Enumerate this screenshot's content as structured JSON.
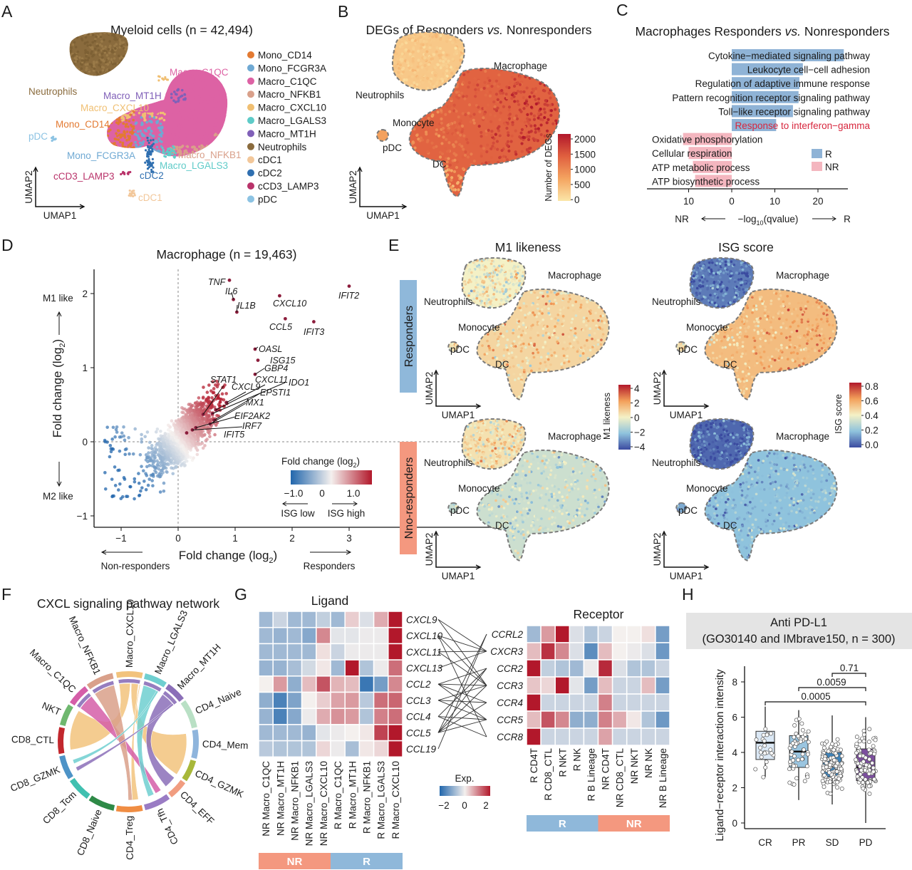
{
  "panel_letters": {
    "A": "A",
    "B": "B",
    "C": "C",
    "D": "D",
    "E": "E",
    "F": "F",
    "G": "G",
    "H": "H"
  },
  "umap_axes": {
    "x": "UMAP1",
    "y": "UMAP2"
  },
  "umap_labels": {
    "macrophage": "Macrophage",
    "neutrophils": "Neutrophils",
    "monocyte": "Monocyte",
    "pdc": "pDC",
    "dc": "DC"
  },
  "panelA": {
    "title": "Myeloid cells (n = 42,494)",
    "legend": [
      {
        "label": "Mono_CD14",
        "color": "#e37a32"
      },
      {
        "label": "Mono_FCGR3A",
        "color": "#6fa9d3"
      },
      {
        "label": "Macro_C1QC",
        "color": "#dd62a4"
      },
      {
        "label": "Macro_NFKB1",
        "color": "#d9a08a"
      },
      {
        "label": "Macro_CXCL10",
        "color": "#f0bf72"
      },
      {
        "label": "Macro_LGALS3",
        "color": "#5ecbc8"
      },
      {
        "label": "Macro_MT1H",
        "color": "#8060b8"
      },
      {
        "label": "Neutrophils",
        "color": "#8a6b3d"
      },
      {
        "label": "cDC1",
        "color": "#f2c79a"
      },
      {
        "label": "cDC2",
        "color": "#2f6fb0"
      },
      {
        "label": "cCD3_LAMP3",
        "color": "#b9336a"
      },
      {
        "label": "pDC",
        "color": "#8cc3e3"
      }
    ],
    "cluster_labels": [
      "Macro_C1QC",
      "Neutrophils",
      "Macro_MT1H",
      "Macro_CXCL10",
      "Mono_CD14",
      "pDC",
      "Mono_FCGR3A",
      "Macro_NFKB1",
      "Macro_LGALS3",
      "cCD3_LAMP3",
      "cDC2",
      "cDC1"
    ]
  },
  "panelB": {
    "title_pre": "DEGs of Responders ",
    "title_vs": "vs.",
    "title_post": " Nonresponders",
    "colorbar": {
      "label": "Number of DEGs",
      "ticks": [
        "2000",
        "1500",
        "1000",
        "500",
        "0"
      ],
      "range": [
        0,
        2000
      ],
      "colors": [
        "#fbe6a8",
        "#f4a460",
        "#e0603f",
        "#b2182b"
      ]
    }
  },
  "chart_data": [
    {
      "panel": "C",
      "type": "bar",
      "orientation": "horizontal",
      "title_pre": "Macrophages Responders ",
      "title_vs": "vs.",
      "title_post": " Nonresponders",
      "categories": [
        "Cytokine−mediated signaling pathway",
        "Leukocyte cell−cell adhesion",
        "Regulation of adaptive immune response",
        "Pattern recognition receptor signaling pathway",
        "Toll−like receptor signaling pathway",
        "Response to interferon−gamma",
        "Oxidative phosphorylation",
        "Cellular respiration",
        "ATP metabolic process",
        "ATP biosynthetic process"
      ],
      "groups": [
        "R",
        "R",
        "R",
        "R",
        "R",
        "R",
        "NR",
        "NR",
        "NR",
        "NR"
      ],
      "values": [
        26,
        16.5,
        15.7,
        15.5,
        14.2,
        10.3,
        11.3,
        10,
        9,
        8.5
      ],
      "highlight_index": 5,
      "highlight_color": "#d7263d",
      "xlabel_pre": "−log",
      "xlabel_sub": "10",
      "xlabel_post": "(qvalue)",
      "xlabel_left": "NR",
      "xlabel_right": "R",
      "xticks": [
        "10",
        "0",
        "10",
        "20"
      ],
      "xlim": [
        -13,
        28
      ],
      "legend": [
        {
          "label": "R",
          "color": "#8fb3d6"
        },
        {
          "label": "NR",
          "color": "#f4b6bf"
        }
      ]
    },
    {
      "panel": "D",
      "type": "scatter",
      "title": "Macrophage (n = 19,463)",
      "xlabel_pre": "Fold change (log",
      "xlabel_sub": "2",
      "xlabel_post": ")",
      "ylabel_pre": "Fold change (log",
      "ylabel_sub": "2",
      "ylabel_post": ")",
      "xlim": [
        -1.5,
        3.5
      ],
      "ylim": [
        -1.1,
        2.3
      ],
      "xticks": [
        "−1",
        "0",
        "1",
        "2",
        "3"
      ],
      "yticks": [
        "2",
        "1",
        "0",
        "−1"
      ],
      "y_top_note": "M1 like",
      "y_bottom_note": "M2 like",
      "x_left_note": "Non-responders",
      "x_right_note": "Responders",
      "labeled_points": [
        {
          "gene": "TNF",
          "x": 0.9,
          "y": 2.18
        },
        {
          "gene": "IL6",
          "x": 0.97,
          "y": 1.92
        },
        {
          "gene": "IL1B",
          "x": 1.03,
          "y": 1.75
        },
        {
          "gene": "CXCL10",
          "x": 1.78,
          "y": 1.97
        },
        {
          "gene": "CCL5",
          "x": 1.88,
          "y": 1.66
        },
        {
          "gene": "IFIT3",
          "x": 2.38,
          "y": 1.62
        },
        {
          "gene": "IFIT2",
          "x": 3.0,
          "y": 2.1
        },
        {
          "gene": "OASL",
          "x": 1.35,
          "y": 1.25
        },
        {
          "gene": "ISG15",
          "x": 1.4,
          "y": 1.1
        },
        {
          "gene": "GBP4",
          "x": 1.35,
          "y": 0.91
        },
        {
          "gene": "STAT1",
          "x": 0.44,
          "y": 0.37
        },
        {
          "gene": "CXCL9",
          "x": 0.85,
          "y": 0.53
        },
        {
          "gene": "CXCL11",
          "x": 0.66,
          "y": 0.43
        },
        {
          "gene": "IDO1",
          "x": 0.6,
          "y": 0.38
        },
        {
          "gene": "EPSTI1",
          "x": 0.63,
          "y": 0.29
        },
        {
          "gene": "MX1",
          "x": 0.56,
          "y": 0.24
        },
        {
          "gene": "EIF2AK2",
          "x": 0.31,
          "y": 0.19
        },
        {
          "gene": "IRF7",
          "x": 0.25,
          "y": 0.16
        },
        {
          "gene": "IFIT5",
          "x": 0.15,
          "y": 0.12
        }
      ],
      "legend": {
        "title_pre": "Fold change (log",
        "title_sub": "2",
        "title_post": ")",
        "ticks": [
          "−1.0",
          "0",
          "1.0"
        ],
        "low": "ISG low",
        "high": "ISG high",
        "colors": [
          "#2166ac",
          "#f4f0ee",
          "#b2182b"
        ]
      }
    },
    {
      "panel": "G",
      "type": "heatmap",
      "ligand": {
        "title": "Ligand",
        "rows": [
          "CXCL9",
          "CXCL10",
          "CXCL11",
          "CXCL13",
          "CCL2",
          "CCL3",
          "CCL4",
          "CCL5",
          "CCL19"
        ],
        "cols": [
          "NR Macro_C1QC",
          "NR Macro_MT1H",
          "NR Macro_NFKB1",
          "NR Macro_LGALS3",
          "NR Macro_CXCL10",
          "R Macro_C1QC",
          "R Macro_MT1H",
          "R Macro_NFKB1",
          "R Macro_LGALS3",
          "R Macro_CXCL10"
        ],
        "values": [
          [
            -1,
            -0.5,
            -1,
            -1,
            -0.6,
            -1,
            0.4,
            -0.3,
            0.8,
            2.5
          ],
          [
            -1,
            -1.1,
            -1,
            -1.3,
            1.2,
            -0.2,
            -0.2,
            -0.1,
            -0.1,
            2.5
          ],
          [
            -1,
            -1,
            -1,
            -1,
            0.2,
            -0.5,
            -0.1,
            -0.1,
            -0.1,
            2.5
          ],
          [
            -1.1,
            -1.1,
            -0.9,
            -0.4,
            0.1,
            -1,
            2.5,
            -0.8,
            -0.1,
            1.5
          ],
          [
            0,
            1,
            -1.2,
            0.6,
            1.8,
            0.7,
            0.6,
            -2.2,
            -1.5,
            1.2
          ],
          [
            -1.2,
            -2,
            -1.4,
            0,
            0.4,
            0.9,
            1,
            -0.7,
            1.5,
            1.6
          ],
          [
            -1.1,
            -2,
            -1.3,
            -0.1,
            0.8,
            1.1,
            1,
            -0.8,
            1.3,
            1.5
          ],
          [
            -1,
            -1,
            -1,
            -1.1,
            -0.2,
            -0.1,
            0,
            0.1,
            2,
            2.5
          ],
          [
            -0.7,
            -0.8,
            -0.8,
            -0.8,
            0.3,
            -0.1,
            -0.9,
            0.1,
            0.3,
            2.5
          ]
        ],
        "groups": [
          {
            "label": "NR",
            "color": "#f4987f"
          },
          {
            "label": "R",
            "color": "#8fb8da"
          }
        ]
      },
      "receptor": {
        "title": "Receptor",
        "rows": [
          "CCRL2",
          "CXCR3",
          "CCR2",
          "CCR3",
          "CCR4",
          "CCR5",
          "CCR8"
        ],
        "cols": [
          "R CD4T",
          "R CD8_CTL",
          "R NKT",
          "R NK",
          "R B Lineage",
          "NR CD4T",
          "NR CD8_CTL",
          "NR NKT",
          "NR NK",
          "NR B Lineage"
        ],
        "values": [
          [
            -1,
            1,
            2.5,
            -0.3,
            -0.8,
            -0.5,
            0,
            0,
            0.2,
            -1.5
          ],
          [
            0.6,
            2.2,
            1.2,
            -0.3,
            -1.8,
            0.6,
            0,
            -0.1,
            -0.3,
            -1.6
          ],
          [
            2.5,
            -0.6,
            -0.8,
            -1,
            -0.1,
            2.3,
            -0.3,
            -0.8,
            -0.8,
            -0.5
          ],
          [
            0.5,
            0.3,
            2.5,
            -0.2,
            -1.5,
            0.6,
            -0.5,
            -0.5,
            0.6,
            -1.5
          ],
          [
            2.5,
            -0.5,
            -0.5,
            -0.5,
            -0.5,
            1.3,
            -0.5,
            -0.5,
            -0.5,
            -0.5
          ],
          [
            0.6,
            1.8,
            1.2,
            -1.2,
            -1.2,
            1.3,
            0.8,
            0.1,
            -0.8,
            -1.6
          ],
          [
            2.5,
            -0.5,
            -0.5,
            -0.5,
            -0.5,
            0.9,
            -0.5,
            -0.5,
            -0.5,
            -0.5
          ]
        ],
        "groups": [
          {
            "label": "R",
            "color": "#8fb8da"
          },
          {
            "label": "NR",
            "color": "#f4987f"
          }
        ]
      },
      "links": [
        [
          "CXCL9",
          "CXCR3"
        ],
        [
          "CXCL9",
          "CCR3"
        ],
        [
          "CXCL10",
          "CXCR3"
        ],
        [
          "CXCL10",
          "CCR3"
        ],
        [
          "CXCL10",
          "CCR8"
        ],
        [
          "CXCL11",
          "CXCR3"
        ],
        [
          "CXCL11",
          "CCR3"
        ],
        [
          "CXCL13",
          "CXCR3"
        ],
        [
          "CCL2",
          "CCR2"
        ],
        [
          "CCL2",
          "CCR3"
        ],
        [
          "CCL2",
          "CCR4"
        ],
        [
          "CCL2",
          "CCR5"
        ],
        [
          "CCL3",
          "CCR3"
        ],
        [
          "CCL3",
          "CCR4"
        ],
        [
          "CCL3",
          "CCR5"
        ],
        [
          "CCL4",
          "CCR2"
        ],
        [
          "CCL4",
          "CCR5"
        ],
        [
          "CCL4",
          "CCR8"
        ],
        [
          "CCL5",
          "CCRL2"
        ],
        [
          "CCL5",
          "CCR2"
        ],
        [
          "CCL5",
          "CCR3"
        ],
        [
          "CCL5",
          "CCR4"
        ],
        [
          "CCL5",
          "CCR5"
        ],
        [
          "CCL19",
          "CCRL2"
        ]
      ],
      "colorbar": {
        "title": "Exp.",
        "ticks": [
          "−2",
          "0",
          "2"
        ],
        "range": [
          -2.5,
          2.5
        ],
        "colors": [
          "#2166ac",
          "#f4f0ee",
          "#b2182b"
        ]
      }
    },
    {
      "panel": "H",
      "type": "box",
      "title_line1": "Anti PD-L1",
      "title_line2": "(GO30140 and IMbrave150, n = 300)",
      "ylabel": "Ligand−receptor interaction intensity",
      "categories": [
        "CR",
        "PR",
        "SD",
        "PD"
      ],
      "ylim": [
        0,
        8.5
      ],
      "yticks": [
        "0",
        "2",
        "4",
        "6",
        "8"
      ],
      "boxes": [
        {
          "min": 2.6,
          "q1": 3.6,
          "median": 4.55,
          "q3": 5.2,
          "max": 6.6,
          "color": "#dbe8f5"
        },
        {
          "min": 1.3,
          "q1": 3.15,
          "median": 4.05,
          "q3": 4.95,
          "max": 6.4,
          "color": "#9ac5e0"
        },
        {
          "min": 1.05,
          "q1": 2.6,
          "median": 3.2,
          "q3": 4.0,
          "max": 6.1,
          "color": "#3f83b9"
        },
        {
          "min": 0.0,
          "q1": 2.4,
          "median": 3.15,
          "q3": 4.2,
          "max": 6.0,
          "color": "#7c4f9e"
        }
      ],
      "comparisons": [
        {
          "from": "SD",
          "to": "PD",
          "p": "0.71"
        },
        {
          "from": "PR",
          "to": "PD",
          "p": "0.0059"
        },
        {
          "from": "CR",
          "to": "PD",
          "p": "0.0005"
        }
      ]
    }
  ],
  "panelE": {
    "titles": [
      "M1 likeness",
      "ISG score"
    ],
    "rows": [
      {
        "label": "Responders",
        "color": "#8fb8da"
      },
      {
        "label": "Nno-responders",
        "color": "#f4987f"
      }
    ],
    "m1_colorbar": {
      "label": "M1 likeness",
      "ticks": [
        "4",
        "2",
        "0",
        "−2",
        "−4"
      ],
      "range": [
        -4,
        4
      ]
    },
    "isg_colorbar": {
      "label": "ISG score",
      "ticks": [
        "0.8",
        "0.6",
        "0.4",
        "0.2",
        "0.0"
      ],
      "range": [
        0,
        0.8
      ]
    },
    "colors": [
      "#3b4ba0",
      "#8fc3dd",
      "#f4f1c6",
      "#f3a05a",
      "#b2182b"
    ]
  },
  "panelF": {
    "title": "CXCL signaling pathway network",
    "sectors": [
      {
        "label": "Macro_CXCL10",
        "color": "#f2c37d"
      },
      {
        "label": "Macro_LGALS3",
        "color": "#6fcfd0"
      },
      {
        "label": "Macro_MT1H",
        "color": "#8b6fb8"
      },
      {
        "label": "CD4_Naive",
        "color": "#b9e0c5"
      },
      {
        "label": "CD4_Mem",
        "color": "#8fb5dc"
      },
      {
        "label": "CD4_GZMK",
        "color": "#a8b83a"
      },
      {
        "label": "CD4_EFF",
        "color": "#f19d80"
      },
      {
        "label": "CD4_Tfh",
        "color": "#9a7cc4"
      },
      {
        "label": "CD4_Treg",
        "color": "#f08d43"
      },
      {
        "label": "CD8_Naive",
        "color": "#2e8a47"
      },
      {
        "label": "CD8_Tcm",
        "color": "#40c0b0"
      },
      {
        "label": "CD8_GZMK",
        "color": "#4d93c7"
      },
      {
        "label": "CD8_CTL",
        "color": "#c2272d"
      },
      {
        "label": "NKT",
        "color": "#6fb86f"
      },
      {
        "label": "Macro_C1QC",
        "color": "#d55ea8"
      },
      {
        "label": "Macro_NFKB1",
        "color": "#d9a08a"
      }
    ]
  }
}
